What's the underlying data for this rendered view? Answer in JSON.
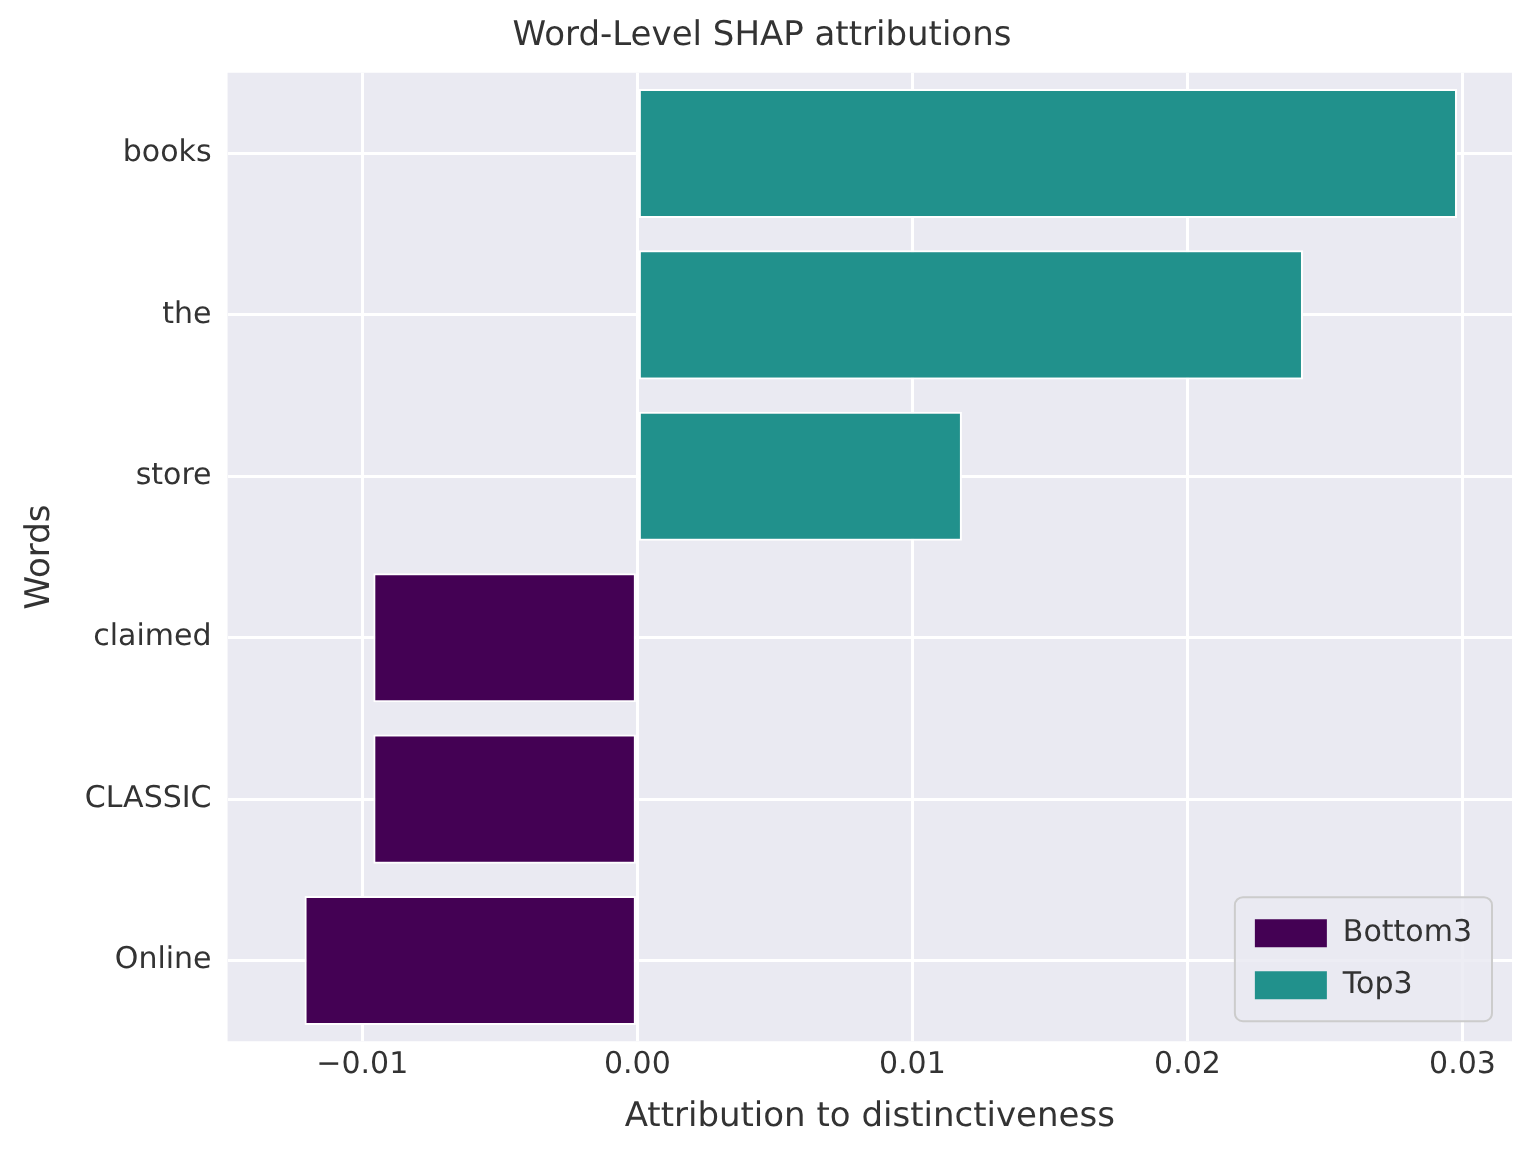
{
  "chart_data": {
    "type": "bar",
    "orientation": "horizontal",
    "title": "Word-Level SHAP attributions",
    "xlabel": "Attribution to distinctiveness",
    "ylabel": "Words",
    "categories": [
      "books",
      "the",
      "store",
      "claimed",
      "CLASSIC",
      "Online"
    ],
    "series": [
      {
        "name": "Bottom3",
        "color": "#440154",
        "values": [
          null,
          null,
          null,
          -0.0096,
          -0.0096,
          -0.0121
        ]
      },
      {
        "name": "Top3",
        "color": "#21918c",
        "values": [
          0.0298,
          0.0242,
          0.0118,
          null,
          null,
          null
        ]
      }
    ],
    "xlim": [
      -0.0149,
      0.0318
    ],
    "xticks": [
      {
        "value": -0.01,
        "label": "−0.01"
      },
      {
        "value": 0,
        "label": "0.00"
      },
      {
        "value": 0.01,
        "label": "0.01"
      },
      {
        "value": 0.02,
        "label": "0.02"
      },
      {
        "value": 0.03,
        "label": "0.03"
      }
    ],
    "grid": true,
    "legend": "bottom right"
  }
}
